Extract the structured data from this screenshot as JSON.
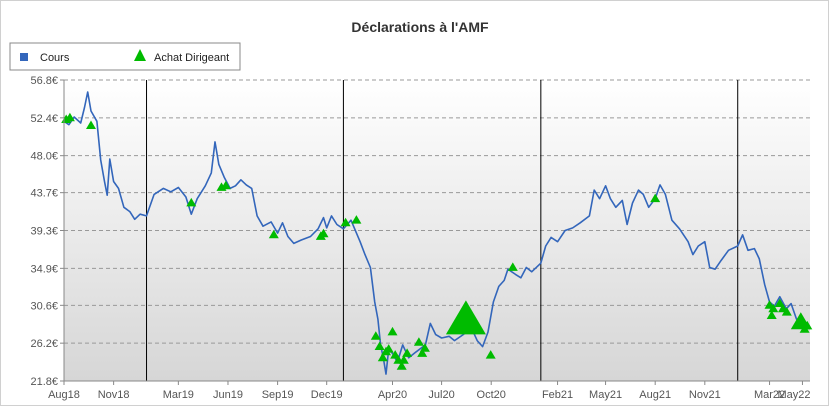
{
  "chart_data": {
    "type": "line",
    "title": "Déclarations à l'AMF",
    "xlabel": "",
    "ylabel": "",
    "xlim": [
      "2018-08-01",
      "2022-05-15"
    ],
    "ylim": [
      21.8,
      56.8
    ],
    "y_ticks": [
      "21.8€",
      "26.2€",
      "30.6€",
      "34.9€",
      "39.3€",
      "43.7€",
      "48.0€",
      "52.4€",
      "56.8€"
    ],
    "y_tick_values": [
      21.8,
      26.2,
      30.6,
      34.9,
      39.3,
      43.7,
      48.0,
      52.4,
      56.8
    ],
    "x_ticks": [
      {
        "label": "Aug18",
        "date": "2018-08-01"
      },
      {
        "label": "Nov18",
        "date": "2018-11-01"
      },
      {
        "label": "Mar19",
        "date": "2019-03-01"
      },
      {
        "label": "Jun19",
        "date": "2019-06-01"
      },
      {
        "label": "Sep19",
        "date": "2019-09-01"
      },
      {
        "label": "Dec19",
        "date": "2019-12-01"
      },
      {
        "label": "Apr20",
        "date": "2020-04-01"
      },
      {
        "label": "Jul20",
        "date": "2020-07-01"
      },
      {
        "label": "Oct20",
        "date": "2020-10-01"
      },
      {
        "label": "Feb21",
        "date": "2021-02-01"
      },
      {
        "label": "May21",
        "date": "2021-05-01"
      },
      {
        "label": "Aug21",
        "date": "2021-08-01"
      },
      {
        "label": "Nov21",
        "date": "2021-11-01"
      },
      {
        "label": "Mar22",
        "date": "2022-03-01"
      },
      {
        "label": "May22",
        "date": "2022-05-01"
      }
    ],
    "year_separators": [
      "2019-01-01",
      "2020-01-01",
      "2021-01-01",
      "2022-01-01"
    ],
    "grid": true,
    "legend_position": "top-left",
    "series": [
      {
        "name": "Cours",
        "color": "#3366bb",
        "points": [
          [
            "2018-08-01",
            52.0
          ],
          [
            "2018-08-10",
            51.6
          ],
          [
            "2018-08-20",
            52.5
          ],
          [
            "2018-09-01",
            51.8
          ],
          [
            "2018-09-08",
            53.6
          ],
          [
            "2018-09-14",
            55.4
          ],
          [
            "2018-09-20",
            53.2
          ],
          [
            "2018-10-01",
            52.0
          ],
          [
            "2018-10-08",
            47.5
          ],
          [
            "2018-10-15",
            45.0
          ],
          [
            "2018-10-20",
            43.4
          ],
          [
            "2018-10-25",
            47.6
          ],
          [
            "2018-11-01",
            45.0
          ],
          [
            "2018-11-10",
            44.2
          ],
          [
            "2018-11-20",
            42.0
          ],
          [
            "2018-12-01",
            41.5
          ],
          [
            "2018-12-10",
            40.6
          ],
          [
            "2018-12-20",
            41.2
          ],
          [
            "2019-01-01",
            41.0
          ],
          [
            "2019-01-15",
            43.5
          ],
          [
            "2019-02-01",
            44.2
          ],
          [
            "2019-02-15",
            43.8
          ],
          [
            "2019-03-01",
            44.3
          ],
          [
            "2019-03-15",
            43.2
          ],
          [
            "2019-03-25",
            41.2
          ],
          [
            "2019-04-05",
            43.0
          ],
          [
            "2019-04-20",
            44.5
          ],
          [
            "2019-05-01",
            46.0
          ],
          [
            "2019-05-08",
            49.6
          ],
          [
            "2019-05-15",
            47.0
          ],
          [
            "2019-05-25",
            45.5
          ],
          [
            "2019-06-05",
            44.2
          ],
          [
            "2019-06-15",
            44.5
          ],
          [
            "2019-06-25",
            45.2
          ],
          [
            "2019-07-05",
            44.6
          ],
          [
            "2019-07-15",
            44.2
          ],
          [
            "2019-07-25",
            41.0
          ],
          [
            "2019-08-05",
            39.8
          ],
          [
            "2019-08-20",
            40.3
          ],
          [
            "2019-09-01",
            39.0
          ],
          [
            "2019-09-10",
            40.2
          ],
          [
            "2019-09-20",
            38.6
          ],
          [
            "2019-10-01",
            37.8
          ],
          [
            "2019-10-15",
            38.2
          ],
          [
            "2019-11-01",
            38.6
          ],
          [
            "2019-11-15",
            39.5
          ],
          [
            "2019-11-25",
            40.8
          ],
          [
            "2019-12-01",
            39.6
          ],
          [
            "2019-12-10",
            41.0
          ],
          [
            "2019-12-20",
            40.0
          ],
          [
            "2020-01-01",
            39.5
          ],
          [
            "2020-01-15",
            40.5
          ],
          [
            "2020-02-01",
            38.0
          ],
          [
            "2020-02-10",
            36.5
          ],
          [
            "2020-02-20",
            35.0
          ],
          [
            "2020-02-28",
            31.0
          ],
          [
            "2020-03-05",
            29.0
          ],
          [
            "2020-03-10",
            26.0
          ],
          [
            "2020-03-15",
            24.5
          ],
          [
            "2020-03-20",
            22.6
          ],
          [
            "2020-03-25",
            25.5
          ],
          [
            "2020-04-01",
            25.0
          ],
          [
            "2020-04-10",
            24.0
          ],
          [
            "2020-04-20",
            26.0
          ],
          [
            "2020-05-01",
            24.5
          ],
          [
            "2020-05-15",
            25.2
          ],
          [
            "2020-06-01",
            26.0
          ],
          [
            "2020-06-10",
            28.5
          ],
          [
            "2020-06-20",
            27.2
          ],
          [
            "2020-07-01",
            26.8
          ],
          [
            "2020-07-15",
            27.0
          ],
          [
            "2020-07-25",
            26.5
          ],
          [
            "2020-08-10",
            27.2
          ],
          [
            "2020-08-25",
            28.0
          ],
          [
            "2020-09-05",
            26.5
          ],
          [
            "2020-09-15",
            25.8
          ],
          [
            "2020-09-25",
            27.5
          ],
          [
            "2020-10-05",
            31.0
          ],
          [
            "2020-10-15",
            32.8
          ],
          [
            "2020-10-25",
            33.5
          ],
          [
            "2020-11-01",
            34.8
          ],
          [
            "2020-11-15",
            34.2
          ],
          [
            "2020-11-25",
            33.8
          ],
          [
            "2020-12-05",
            35.0
          ],
          [
            "2020-12-15",
            34.5
          ],
          [
            "2021-01-01",
            35.5
          ],
          [
            "2021-01-10",
            37.5
          ],
          [
            "2021-01-20",
            38.5
          ],
          [
            "2021-02-01",
            38.0
          ],
          [
            "2021-02-15",
            39.3
          ],
          [
            "2021-03-01",
            39.6
          ],
          [
            "2021-03-15",
            40.2
          ],
          [
            "2021-04-01",
            41.0
          ],
          [
            "2021-04-10",
            44.0
          ],
          [
            "2021-04-20",
            43.0
          ],
          [
            "2021-05-01",
            44.5
          ],
          [
            "2021-05-10",
            43.0
          ],
          [
            "2021-05-20",
            42.0
          ],
          [
            "2021-06-01",
            42.8
          ],
          [
            "2021-06-10",
            40.0
          ],
          [
            "2021-06-20",
            42.5
          ],
          [
            "2021-07-01",
            44.0
          ],
          [
            "2021-07-10",
            43.5
          ],
          [
            "2021-07-20",
            42.0
          ],
          [
            "2021-08-01",
            43.0
          ],
          [
            "2021-08-10",
            44.6
          ],
          [
            "2021-08-20",
            43.5
          ],
          [
            "2021-09-01",
            40.5
          ],
          [
            "2021-09-15",
            39.5
          ],
          [
            "2021-10-01",
            38.0
          ],
          [
            "2021-10-10",
            36.5
          ],
          [
            "2021-10-20",
            37.5
          ],
          [
            "2021-11-01",
            38.0
          ],
          [
            "2021-11-10",
            35.0
          ],
          [
            "2021-11-20",
            34.8
          ],
          [
            "2021-12-01",
            35.8
          ],
          [
            "2021-12-15",
            37.0
          ],
          [
            "2022-01-01",
            37.5
          ],
          [
            "2022-01-10",
            38.8
          ],
          [
            "2022-01-20",
            37.0
          ],
          [
            "2022-02-01",
            37.2
          ],
          [
            "2022-02-10",
            36.0
          ],
          [
            "2022-02-20",
            33.0
          ],
          [
            "2022-03-01",
            31.0
          ],
          [
            "2022-03-10",
            30.5
          ],
          [
            "2022-03-20",
            31.6
          ],
          [
            "2022-04-01",
            30.2
          ],
          [
            "2022-04-10",
            30.8
          ],
          [
            "2022-04-20",
            29.0
          ],
          [
            "2022-05-01",
            28.5
          ],
          [
            "2022-05-14",
            28.2
          ]
        ]
      },
      {
        "name": "Achat Dirigeant",
        "color": "#00bb00",
        "marker": "triangle",
        "points": [
          [
            "2018-08-05",
            52.2,
            1
          ],
          [
            "2018-08-12",
            52.4,
            1
          ],
          [
            "2018-09-20",
            51.5,
            1
          ],
          [
            "2019-03-25",
            42.5,
            1
          ],
          [
            "2019-05-20",
            44.3,
            1
          ],
          [
            "2019-05-28",
            44.5,
            1
          ],
          [
            "2019-08-25",
            38.8,
            1
          ],
          [
            "2019-11-20",
            38.6,
            1
          ],
          [
            "2019-11-25",
            38.9,
            1
          ],
          [
            "2020-01-05",
            40.2,
            1
          ],
          [
            "2020-01-25",
            40.5,
            1
          ],
          [
            "2020-03-01",
            27.0,
            1
          ],
          [
            "2020-03-08",
            25.8,
            1
          ],
          [
            "2020-03-14",
            24.5,
            1
          ],
          [
            "2020-03-20",
            25.2,
            1
          ],
          [
            "2020-03-25",
            25.5,
            1
          ],
          [
            "2020-04-01",
            27.5,
            1
          ],
          [
            "2020-04-06",
            24.8,
            1
          ],
          [
            "2020-04-12",
            24.2,
            1
          ],
          [
            "2020-04-18",
            23.5,
            1
          ],
          [
            "2020-04-22",
            24.2,
            1
          ],
          [
            "2020-04-28",
            25.0,
            1
          ],
          [
            "2020-05-20",
            26.3,
            1
          ],
          [
            "2020-05-26",
            25.0,
            1
          ],
          [
            "2020-05-31",
            25.6,
            1
          ],
          [
            "2020-08-15",
            28.8,
            4
          ],
          [
            "2020-09-30",
            24.8,
            1
          ],
          [
            "2020-11-10",
            35.0,
            1
          ],
          [
            "2021-08-01",
            43.0,
            1
          ],
          [
            "2022-03-01",
            30.6,
            1
          ],
          [
            "2022-03-05",
            29.4,
            1
          ],
          [
            "2022-03-08",
            30.2,
            1
          ],
          [
            "2022-03-20",
            30.8,
            1
          ],
          [
            "2022-03-26",
            30.2,
            1
          ],
          [
            "2022-04-02",
            29.8,
            1
          ],
          [
            "2022-04-28",
            28.6,
            2
          ],
          [
            "2022-05-05",
            27.8,
            1
          ],
          [
            "2022-05-10",
            28.2,
            1
          ]
        ]
      }
    ]
  }
}
